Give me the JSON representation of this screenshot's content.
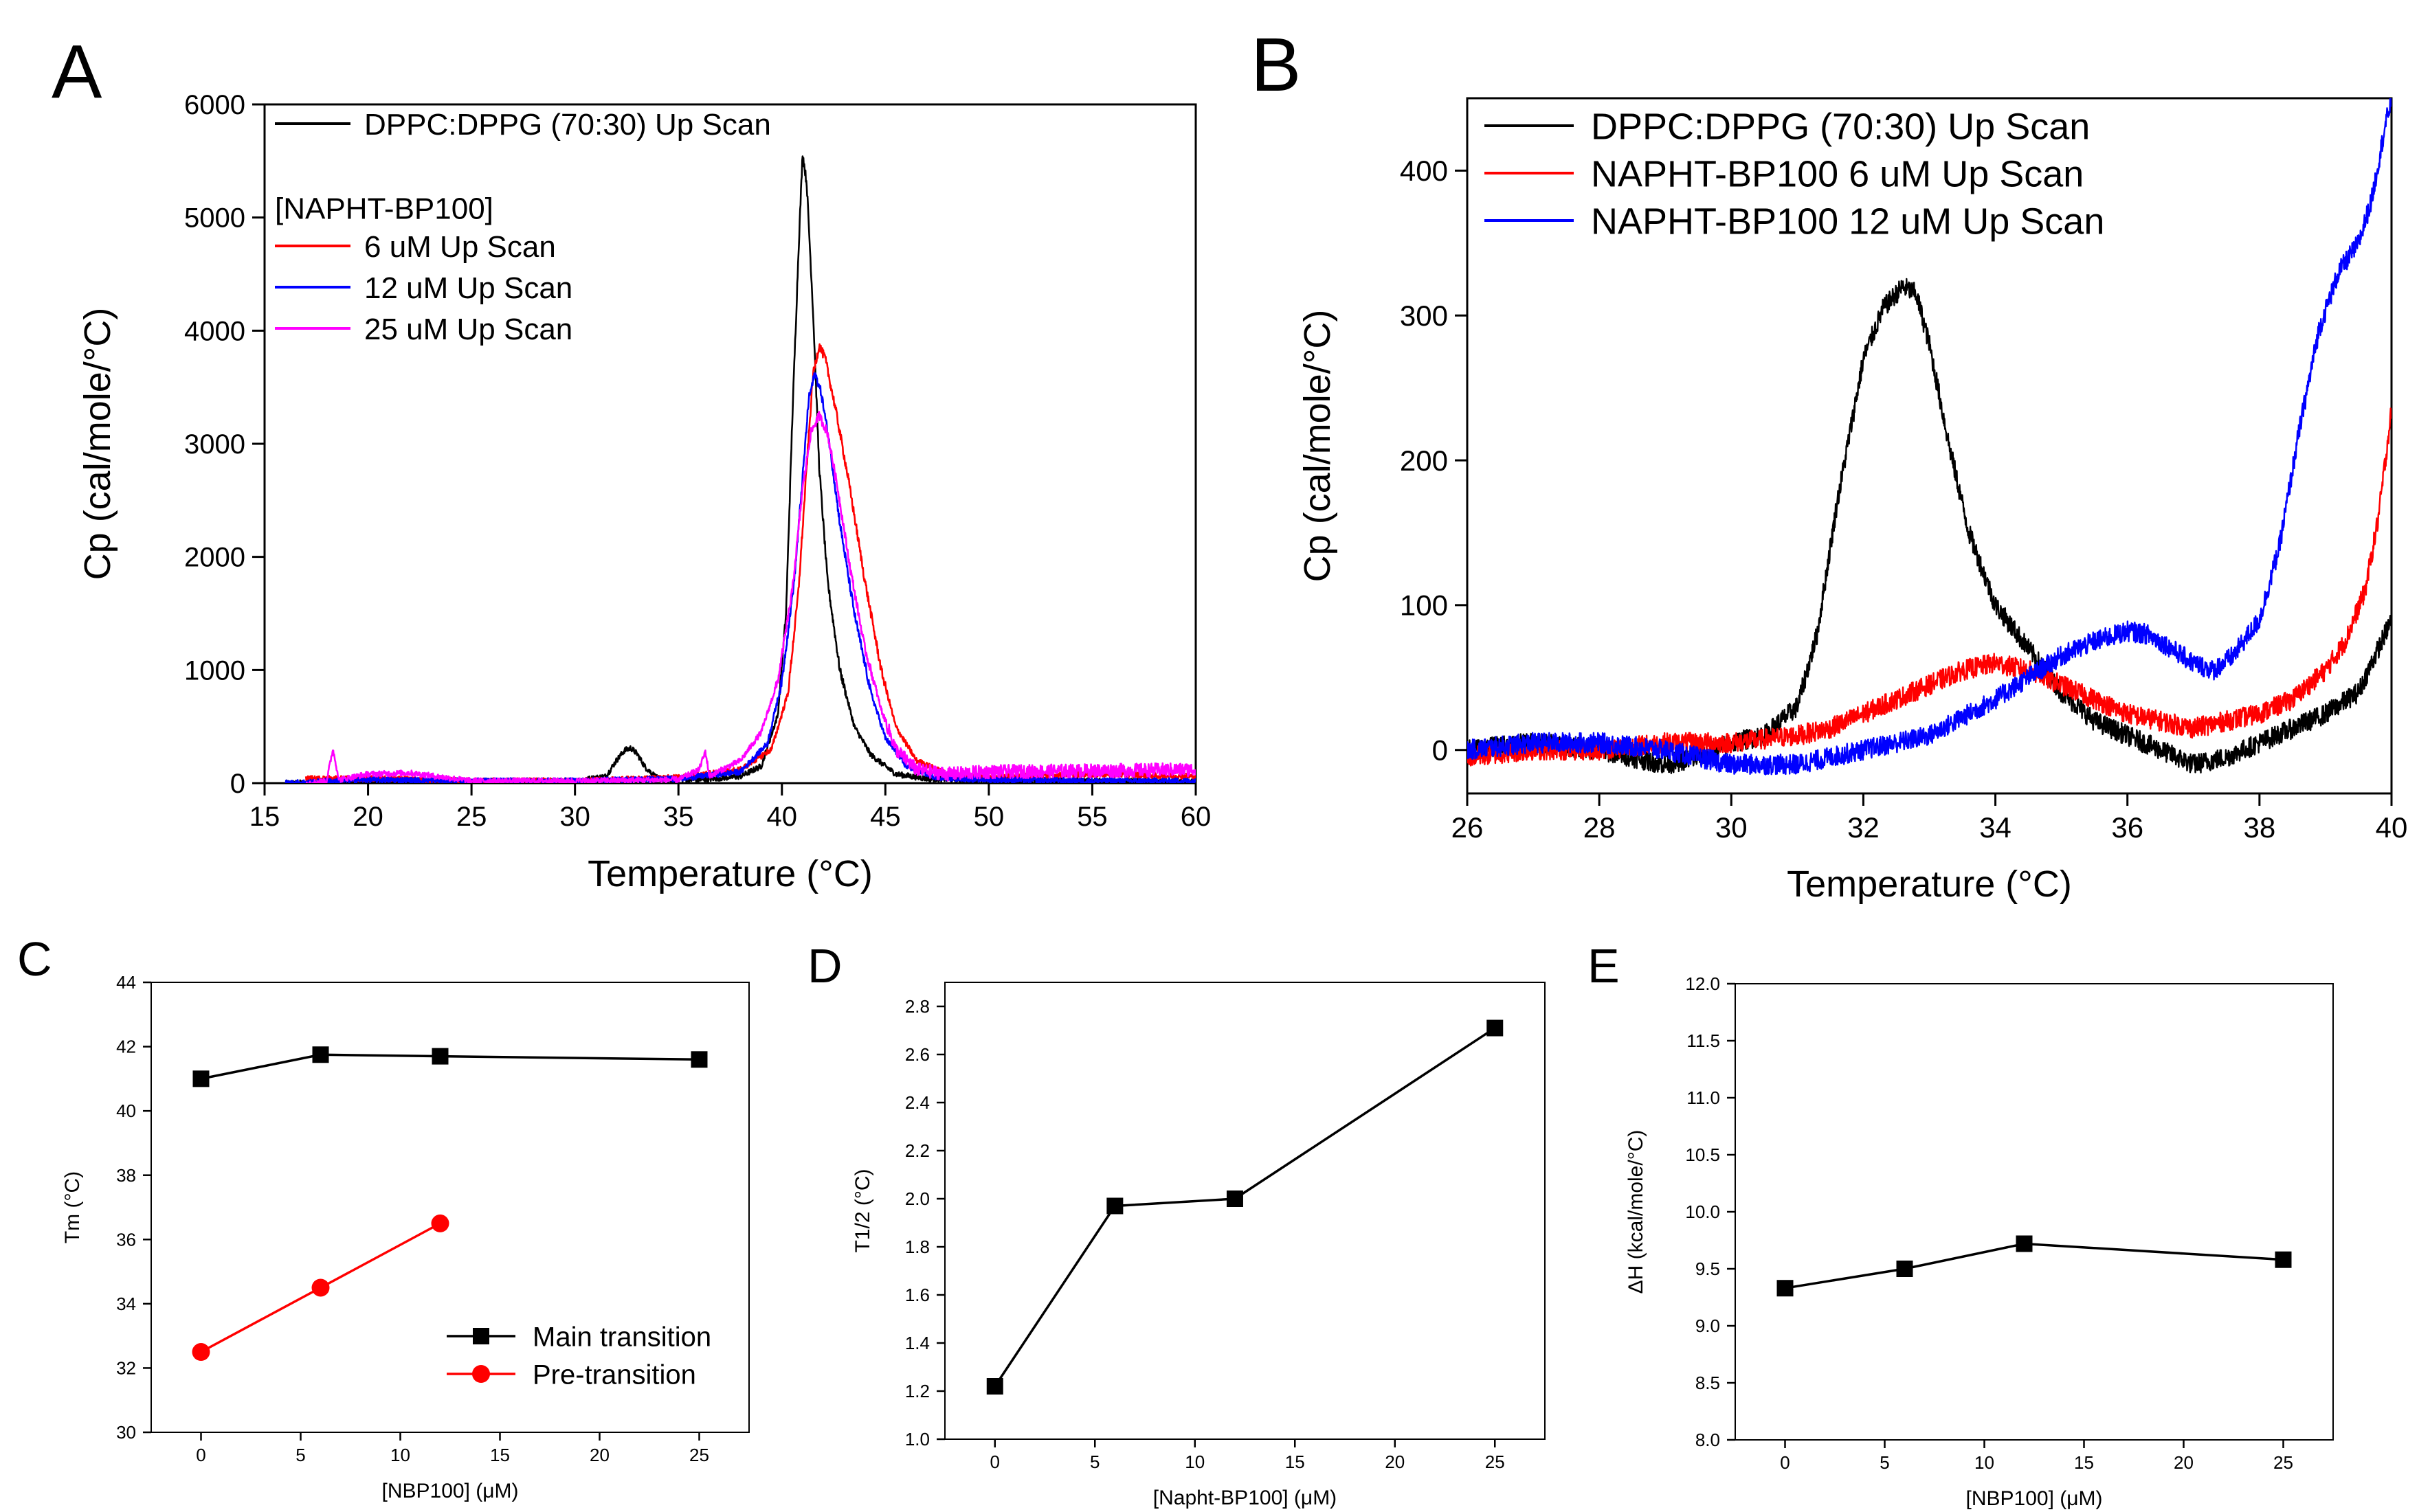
{
  "panel_letters": [
    "A",
    "B",
    "C",
    "D",
    "E"
  ],
  "colors": {
    "black": "#000000",
    "red": "#ff0000",
    "blue": "#0000ff",
    "magenta": "#ff00ff"
  },
  "chart_data": [
    {
      "id": "A",
      "type": "line",
      "xlabel": "Temperature (°C)",
      "ylabel": "Cp (cal/mole/°C)",
      "xlim": [
        15,
        60
      ],
      "ylim": [
        0,
        6000
      ],
      "xticks": [
        "15",
        "20",
        "25",
        "30",
        "35",
        "40",
        "45",
        "50",
        "55",
        "60"
      ],
      "yticks": [
        "0",
        "1000",
        "2000",
        "3000",
        "4000",
        "5000",
        "6000"
      ],
      "legend_title": "[NAPHT-BP100]",
      "series": [
        {
          "name": "DPPC:DPPG (70:30) Up Scan",
          "color": "#000000",
          "x": [
            16,
            20,
            25,
            30,
            31.5,
            32,
            32.4,
            32.7,
            33,
            33.4,
            34,
            36,
            38,
            39,
            39.8,
            40.2,
            40.5,
            40.8,
            41,
            41.2,
            41.5,
            41.8,
            42.2,
            42.8,
            43.5,
            44.3,
            45.5,
            47,
            50,
            55,
            60
          ],
          "values": [
            0,
            10,
            15,
            18,
            60,
            200,
            290,
            310,
            260,
            140,
            40,
            30,
            60,
            150,
            600,
            1500,
            3200,
            4700,
            5570,
            5300,
            4200,
            2800,
            1800,
            1000,
            500,
            250,
            80,
            40,
            30,
            20,
            10
          ]
        },
        {
          "name": "6 uM Up Scan",
          "color": "#ff0000",
          "x": [
            17,
            20,
            25,
            30,
            35,
            38,
            39.5,
            40.3,
            40.8,
            41.2,
            41.5,
            41.8,
            42.1,
            42.6,
            43.2,
            44,
            44.8,
            45.5,
            46.5,
            48,
            50,
            55,
            60
          ],
          "values": [
            40,
            40,
            20,
            20,
            50,
            120,
            300,
            800,
            1700,
            2800,
            3600,
            3870,
            3750,
            3300,
            2700,
            1800,
            1000,
            500,
            200,
            80,
            50,
            80,
            60
          ]
        },
        {
          "name": "12 uM Up Scan",
          "color": "#0000ff",
          "x": [
            16,
            20,
            25,
            30,
            35,
            38,
            39.3,
            40,
            40.6,
            41,
            41.3,
            41.6,
            41.9,
            42.3,
            42.8,
            43.5,
            44.3,
            45,
            46,
            47.5,
            50,
            55,
            60
          ],
          "values": [
            0,
            30,
            20,
            20,
            40,
            100,
            350,
            900,
            1800,
            2700,
            3400,
            3620,
            3450,
            3000,
            2300,
            1500,
            800,
            400,
            150,
            50,
            30,
            20,
            20
          ]
        },
        {
          "name": "25 uM Up Scan",
          "color": "#ff00ff",
          "x": [
            17,
            18,
            18.3,
            18.6,
            20,
            22,
            25,
            30,
            35,
            36,
            36.3,
            36.5,
            37,
            38,
            39,
            39.8,
            40.5,
            41,
            41.4,
            41.8,
            42.2,
            42.7,
            43.3,
            44,
            44.8,
            45.5,
            46.5,
            48,
            50,
            55,
            60
          ],
          "values": [
            0,
            20,
            300,
            30,
            80,
            90,
            20,
            20,
            30,
            120,
            280,
            60,
            110,
            200,
            450,
            900,
            1700,
            2600,
            3100,
            3250,
            3100,
            2600,
            1900,
            1200,
            650,
            300,
            120,
            80,
            100,
            110,
            120
          ]
        }
      ]
    },
    {
      "id": "B",
      "type": "line",
      "xlabel": "Temperature (°C)",
      "ylabel": "Cp (cal/mole/°C)",
      "xlim": [
        26,
        40
      ],
      "ylim": [
        -30,
        450
      ],
      "xticks": [
        "26",
        "28",
        "30",
        "32",
        "34",
        "36",
        "38",
        "40"
      ],
      "yticks": [
        "0",
        "100",
        "200",
        "300",
        "400"
      ],
      "series": [
        {
          "name": "DPPC:DPPG (70:30) Up Scan",
          "color": "#000000",
          "x": [
            26,
            27,
            28,
            28.5,
            29,
            29.5,
            30,
            30.5,
            31,
            31.3,
            31.6,
            32,
            32.3,
            32.6,
            32.8,
            33,
            33.3,
            33.6,
            34,
            34.5,
            35,
            35.5,
            36,
            36.5,
            37,
            37.5,
            38,
            38.5,
            39,
            39.5,
            40
          ],
          "values": [
            0,
            5,
            0,
            -5,
            -10,
            -5,
            5,
            10,
            30,
            80,
            170,
            270,
            305,
            320,
            315,
            280,
            210,
            150,
            100,
            70,
            40,
            20,
            10,
            0,
            -10,
            -5,
            5,
            15,
            25,
            40,
            90
          ]
        },
        {
          "name": "NAPHT-BP100 6 uM Up Scan",
          "color": "#ff0000",
          "x": [
            26,
            27,
            28,
            29,
            30,
            31,
            31.5,
            32,
            33,
            33.5,
            34,
            34.5,
            35,
            35.5,
            36,
            36.5,
            37,
            37.5,
            38,
            38.5,
            39,
            39.3,
            39.6,
            39.8,
            40
          ],
          "values": [
            -5,
            0,
            0,
            5,
            5,
            10,
            15,
            25,
            45,
            55,
            60,
            55,
            45,
            35,
            25,
            20,
            15,
            20,
            25,
            35,
            55,
            75,
            110,
            160,
            235
          ]
        },
        {
          "name": "NAPHT-BP100 12 uM Up Scan",
          "color": "#0000ff",
          "x": [
            26,
            27,
            28,
            29,
            30,
            31,
            32,
            33,
            34,
            34.5,
            35,
            35.5,
            36,
            36.3,
            36.6,
            37,
            37.3,
            37.6,
            38,
            38.3,
            38.6,
            38.9,
            39.2,
            39.5,
            39.7,
            39.9,
            40
          ],
          "values": [
            0,
            5,
            5,
            0,
            -10,
            -10,
            0,
            10,
            35,
            50,
            65,
            75,
            82,
            80,
            72,
            60,
            55,
            65,
            90,
            140,
            220,
            290,
            330,
            350,
            380,
            430,
            450
          ]
        }
      ]
    },
    {
      "id": "C",
      "type": "line",
      "xlabel": "[NBP100] (μM)",
      "ylabel": "Tm (°C)",
      "xlim": [
        -2.5,
        27.5
      ],
      "ylim": [
        30,
        44
      ],
      "xticks": [
        "0",
        "5",
        "10",
        "15",
        "20",
        "25"
      ],
      "yticks": [
        "30",
        "32",
        "34",
        "36",
        "38",
        "40",
        "42",
        "44"
      ],
      "series": [
        {
          "name": "Main transition",
          "color": "#000000",
          "marker": "square",
          "x": [
            0,
            6,
            12,
            25
          ],
          "values": [
            41,
            41.75,
            41.7,
            41.6
          ]
        },
        {
          "name": "Pre-transition",
          "color": "#ff0000",
          "marker": "circle",
          "x": [
            0,
            6,
            12
          ],
          "values": [
            32.5,
            34.5,
            36.5
          ]
        }
      ]
    },
    {
      "id": "D",
      "type": "line",
      "xlabel": "[Napht-BP100] (μM)",
      "ylabel": "T1/2 (°C)",
      "xlim": [
        -2.5,
        27.5
      ],
      "ylim": [
        1.0,
        2.9
      ],
      "xticks": [
        "0",
        "5",
        "10",
        "15",
        "20",
        "25"
      ],
      "yticks": [
        "1.0",
        "1.2",
        "1.4",
        "1.6",
        "1.8",
        "2.0",
        "2.2",
        "2.4",
        "2.6",
        "2.8"
      ],
      "series": [
        {
          "name": "T1/2",
          "color": "#000000",
          "marker": "square",
          "x": [
            0,
            6,
            12,
            25
          ],
          "values": [
            1.22,
            1.97,
            2.0,
            2.71
          ]
        }
      ]
    },
    {
      "id": "E",
      "type": "line",
      "xlabel": "[NBP100] (μM)",
      "ylabel": "ΔH (kcal/mole/°C)",
      "xlim": [
        -2.5,
        27.5
      ],
      "ylim": [
        8.0,
        12.0
      ],
      "xticks": [
        "0",
        "5",
        "10",
        "15",
        "20",
        "25"
      ],
      "yticks": [
        "8.0",
        "8.5",
        "9.0",
        "9.5",
        "10.0",
        "10.5",
        "11.0",
        "11.5",
        "12.0"
      ],
      "series": [
        {
          "name": "ΔH",
          "color": "#000000",
          "marker": "square",
          "x": [
            0,
            6,
            12,
            25
          ],
          "values": [
            9.33,
            9.5,
            9.72,
            9.58
          ]
        }
      ]
    }
  ]
}
